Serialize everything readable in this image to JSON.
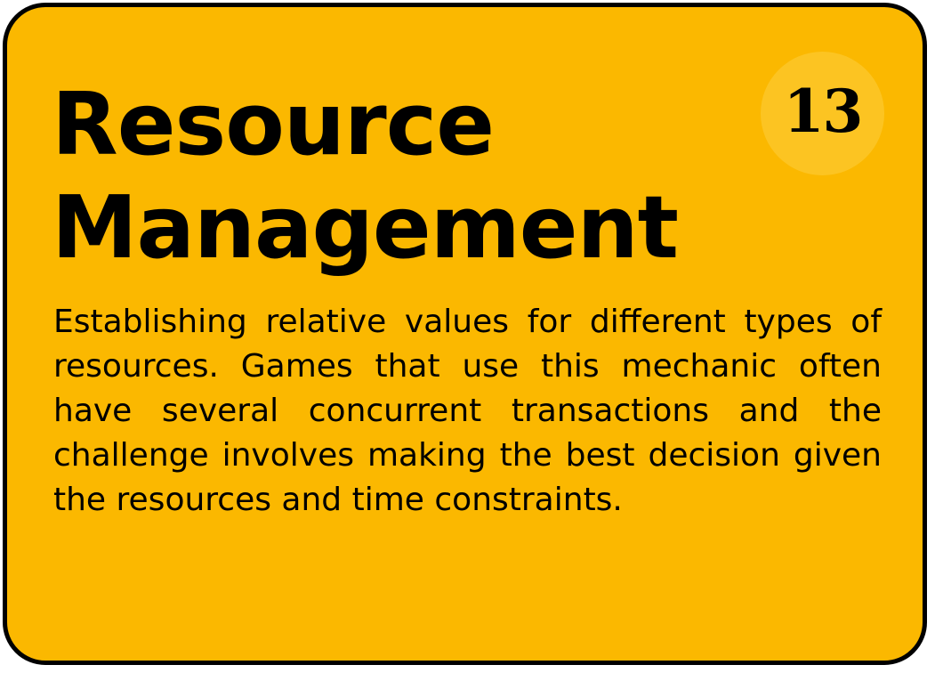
{
  "card": {
    "title_line1": "Resource",
    "title_line2": "Management",
    "number": "13",
    "description": "Establishing relative values for different types of resources. Games that use this mechanic often have several concurrent transactions and the challenge involves making the best decision given the resources and time constraints.",
    "colors": {
      "background": "#fbb800",
      "badge": "#fcc422",
      "border": "#000000",
      "text": "#000000"
    }
  }
}
